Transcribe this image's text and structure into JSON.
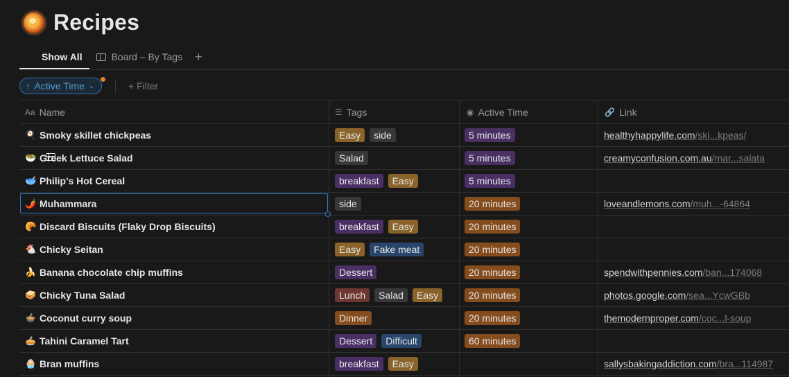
{
  "page": {
    "title": "Recipes",
    "icon": "paella-pan-icon"
  },
  "views": [
    {
      "label": "Show All",
      "icon": "table-icon",
      "active": true
    },
    {
      "label": "Board – By Tags",
      "icon": "board-icon",
      "active": false
    }
  ],
  "add_view": "+",
  "toolbar": {
    "sort_label": "Active Time",
    "sort_arrow": "↑",
    "filter_label": "+ Filter"
  },
  "columns": {
    "name": {
      "label": "Name",
      "icon": "Aa"
    },
    "tags": {
      "label": "Tags",
      "icon": "list-icon"
    },
    "time": {
      "label": "Active Time",
      "icon": "select-icon"
    },
    "link": {
      "label": "Link",
      "icon": "link-icon"
    }
  },
  "tag_colors": {
    "Easy": "#89632a",
    "side": "#373737",
    "Salad": "#373737",
    "breakfast": "#492f64",
    "Fake meat": "#28456c",
    "Dessert": "#492f64",
    "Lunch": "#6e3630",
    "Dinner": "#854c1d",
    "Difficult": "#28456c"
  },
  "time_colors": {
    "5 minutes": "#492f64",
    "20 minutes": "#854c1d",
    "60 minutes": "#854c1d"
  },
  "rows": [
    {
      "emoji": "🍳",
      "name": "Smoky skillet chickpeas",
      "tags": [
        "Easy",
        "side"
      ],
      "time": "5 minutes",
      "link_host": "healthyhappylife.com",
      "link_path": "/ski...kpeas/"
    },
    {
      "emoji": "🥗",
      "name": "Greek Lettuce Salad",
      "tags": [
        "Salad"
      ],
      "time": "5 minutes",
      "link_host": "creamyconfusion.com.au",
      "link_path": "/mar...salata"
    },
    {
      "emoji": "🥣",
      "name": "Philip's Hot Cereal",
      "tags": [
        "breakfast",
        "Easy"
      ],
      "time": "5 minutes",
      "link_host": "",
      "link_path": ""
    },
    {
      "emoji": "🌶️",
      "name": "Muhammara",
      "tags": [
        "side"
      ],
      "time": "20 minutes",
      "link_host": "loveandlemons.com",
      "link_path": "/muh...-64864"
    },
    {
      "emoji": "🥐",
      "name": "Discard Biscuits (Flaky Drop Biscuits)",
      "tags": [
        "breakfast",
        "Easy"
      ],
      "time": "20 minutes",
      "link_host": "",
      "link_path": ""
    },
    {
      "emoji": "🐔",
      "name": "Chicky Seitan",
      "tags": [
        "Easy",
        "Fake meat"
      ],
      "time": "20 minutes",
      "link_host": "",
      "link_path": ""
    },
    {
      "emoji": "🍌",
      "name": "Banana chocolate chip muffins",
      "tags": [
        "Dessert"
      ],
      "time": "20 minutes",
      "link_host": "spendwithpennies.com",
      "link_path": "/ban...174068"
    },
    {
      "emoji": "🥪",
      "name": "Chicky Tuna Salad",
      "tags": [
        "Lunch",
        "Salad",
        "Easy"
      ],
      "time": "20 minutes",
      "link_host": "photos.google.com",
      "link_path": "/sea...YcwGBb"
    },
    {
      "emoji": "🍲",
      "name": "Coconut curry soup",
      "tags": [
        "Dinner"
      ],
      "time": "20 minutes",
      "link_host": "themodernproper.com",
      "link_path": "/coc...l-soup"
    },
    {
      "emoji": "🥧",
      "name": "Tahini Caramel Tart",
      "tags": [
        "Dessert",
        "Difficult"
      ],
      "time": "60 minutes",
      "link_host": "",
      "link_path": ""
    },
    {
      "emoji": "🧁",
      "name": "Bran muffins",
      "tags": [
        "breakfast",
        "Easy"
      ],
      "time": "",
      "link_host": "sallysbakingaddiction.com",
      "link_path": "/bra...114987"
    }
  ]
}
